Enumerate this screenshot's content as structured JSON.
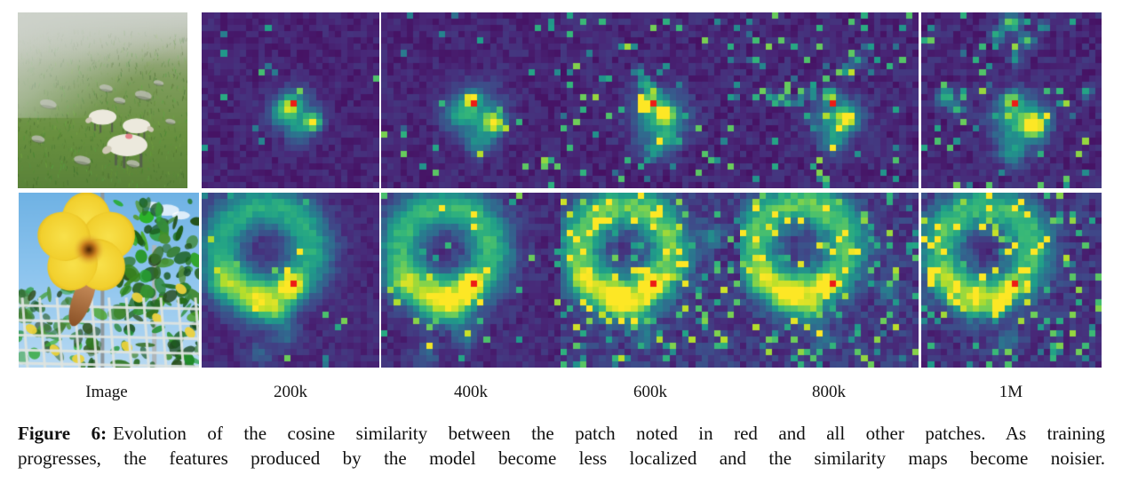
{
  "figure": {
    "column_labels": [
      "Image",
      "200k",
      "400k",
      "600k",
      "800k",
      "1M"
    ],
    "caption": {
      "tag": "Figure 6:",
      "line1": "Evolution of the cosine similarity between the patch noted in red and all other patches.  As training",
      "line2": "progresses, the features produced by the model become less localized and the similarity maps become noisier."
    }
  },
  "photos": [
    {
      "id": "sheep",
      "description": "Three white sheep grazing on a foggy green hillside"
    },
    {
      "id": "flower",
      "description": "Large yellow flower against blue sky with green foliage and a white wire fence"
    }
  ],
  "colors": {
    "red_patch": "#ed1c16",
    "background": "#ffffff",
    "viridis": [
      "#440154",
      "#482878",
      "#3e4a89",
      "#31688e",
      "#26828e",
      "#1f9e89",
      "#35b779",
      "#6ece58",
      "#b5de2b",
      "#fde725"
    ]
  },
  "grid": 28,
  "red_cell": [
    14,
    14
  ],
  "heatmaps": [
    {
      "id": "r0p0",
      "row": 0,
      "step": "200k",
      "seed": 11,
      "base": 0.1,
      "noise": 0.05,
      "speckle": 0.012,
      "blobs": [
        [
          0.52,
          0.56,
          0.085,
          0.33
        ],
        [
          0.505,
          0.525,
          0.04,
          0.5
        ],
        [
          0.63,
          0.625,
          0.033,
          0.8
        ],
        [
          0.55,
          0.68,
          0.05,
          0.25
        ],
        [
          0.445,
          0.575,
          0.05,
          0.28
        ]
      ]
    },
    {
      "id": "r0p1",
      "row": 0,
      "step": "400k",
      "seed": 22,
      "base": 0.105,
      "noise": 0.055,
      "speckle": 0.03,
      "blobs": [
        [
          0.53,
          0.57,
          0.1,
          0.4
        ],
        [
          0.505,
          0.495,
          0.028,
          0.85
        ],
        [
          0.63,
          0.63,
          0.04,
          0.8
        ],
        [
          0.55,
          0.74,
          0.055,
          0.3
        ],
        [
          0.43,
          0.58,
          0.05,
          0.3
        ]
      ]
    },
    {
      "id": "r0p2",
      "row": 0,
      "step": "600k",
      "seed": 33,
      "base": 0.11,
      "noise": 0.065,
      "speckle": 0.06,
      "blobs": [
        [
          0.55,
          0.6,
          0.1,
          0.48
        ],
        [
          0.585,
          0.575,
          0.033,
          0.8
        ],
        [
          0.5,
          0.5,
          0.04,
          0.5
        ],
        [
          0.47,
          0.4,
          0.025,
          0.55
        ],
        [
          0.435,
          0.335,
          0.02,
          0.5
        ],
        [
          0.52,
          0.44,
          0.02,
          0.5
        ],
        [
          0.52,
          0.79,
          0.04,
          0.35
        ],
        [
          0.6,
          0.72,
          0.04,
          0.3
        ]
      ]
    },
    {
      "id": "r0p3",
      "row": 0,
      "step": "800k",
      "seed": 44,
      "base": 0.11,
      "noise": 0.065,
      "speckle": 0.07,
      "blobs": [
        [
          0.55,
          0.6,
          0.09,
          0.46
        ],
        [
          0.6,
          0.605,
          0.033,
          0.85
        ],
        [
          0.5,
          0.47,
          0.024,
          0.8
        ],
        [
          0.22,
          0.49,
          0.02,
          0.8
        ],
        [
          0.28,
          0.51,
          0.018,
          0.7
        ],
        [
          0.335,
          0.5,
          0.016,
          0.6
        ],
        [
          0.16,
          0.47,
          0.016,
          0.65
        ],
        [
          0.4,
          0.46,
          0.02,
          0.55
        ],
        [
          0.6,
          0.33,
          0.025,
          0.5
        ],
        [
          0.66,
          0.27,
          0.025,
          0.5
        ],
        [
          0.72,
          0.2,
          0.02,
          0.45
        ],
        [
          0.52,
          0.74,
          0.05,
          0.3
        ]
      ]
    },
    {
      "id": "r0p4",
      "row": 0,
      "step": "1M",
      "seed": 55,
      "base": 0.11,
      "noise": 0.065,
      "speckle": 0.055,
      "blobs": [
        [
          0.55,
          0.62,
          0.105,
          0.5
        ],
        [
          0.625,
          0.64,
          0.045,
          0.8
        ],
        [
          0.5,
          0.5,
          0.035,
          0.6
        ],
        [
          0.5,
          0.06,
          0.035,
          0.7
        ],
        [
          0.42,
          0.13,
          0.025,
          0.6
        ],
        [
          0.58,
          0.16,
          0.03,
          0.6
        ],
        [
          0.52,
          0.26,
          0.025,
          0.5
        ],
        [
          0.68,
          0.08,
          0.02,
          0.55
        ],
        [
          0.14,
          0.48,
          0.035,
          0.6
        ],
        [
          0.2,
          0.55,
          0.025,
          0.5
        ],
        [
          0.5,
          0.8,
          0.05,
          0.33
        ],
        [
          0.92,
          0.45,
          0.022,
          0.5
        ]
      ]
    },
    {
      "id": "r1p0",
      "row": 1,
      "step": "200k",
      "seed": 66,
      "base": 0.12,
      "noise": 0.05,
      "speckle": 0.02,
      "ring": [
        0.36,
        0.33,
        0.25,
        0.09,
        0.5
      ],
      "blobs": [
        [
          0.5,
          0.53,
          0.042,
          0.85
        ],
        [
          0.3,
          0.62,
          0.08,
          0.38
        ],
        [
          0.42,
          0.68,
          0.06,
          0.33
        ],
        [
          0.12,
          0.52,
          0.065,
          0.3
        ],
        [
          0.48,
          0.82,
          0.05,
          0.22
        ],
        [
          0.33,
          0.92,
          0.05,
          0.18
        ]
      ]
    },
    {
      "id": "r1p1",
      "row": 1,
      "step": "400k",
      "seed": 77,
      "base": 0.12,
      "noise": 0.06,
      "speckle": 0.05,
      "ring": [
        0.36,
        0.33,
        0.25,
        0.09,
        0.55
      ],
      "blobs": [
        [
          0.5,
          0.53,
          0.042,
          0.95
        ],
        [
          0.3,
          0.62,
          0.08,
          0.4
        ],
        [
          0.42,
          0.68,
          0.06,
          0.35
        ],
        [
          0.12,
          0.52,
          0.06,
          0.3
        ],
        [
          0.48,
          0.83,
          0.05,
          0.25
        ],
        [
          0.25,
          0.93,
          0.05,
          0.2
        ]
      ]
    },
    {
      "id": "r1p2",
      "row": 1,
      "step": "600k",
      "seed": 88,
      "base": 0.17,
      "noise": 0.085,
      "speckle": 0.13,
      "ring": [
        0.36,
        0.33,
        0.25,
        0.085,
        0.6
      ],
      "blobs": [
        [
          0.5,
          0.53,
          0.04,
          0.85
        ],
        [
          0.3,
          0.62,
          0.075,
          0.4
        ],
        [
          0.42,
          0.68,
          0.055,
          0.35
        ],
        [
          0.12,
          0.52,
          0.055,
          0.3
        ],
        [
          0.85,
          0.25,
          0.04,
          0.3
        ],
        [
          0.48,
          0.84,
          0.05,
          0.22
        ]
      ]
    },
    {
      "id": "r1p3",
      "row": 1,
      "step": "800k",
      "seed": 99,
      "base": 0.165,
      "noise": 0.085,
      "speckle": 0.13,
      "ring": [
        0.34,
        0.31,
        0.25,
        0.085,
        0.58
      ],
      "blobs": [
        [
          0.48,
          0.52,
          0.035,
          0.7
        ],
        [
          0.28,
          0.6,
          0.075,
          0.42
        ],
        [
          0.4,
          0.67,
          0.055,
          0.33
        ],
        [
          0.12,
          0.5,
          0.05,
          0.3
        ],
        [
          0.82,
          0.55,
          0.04,
          0.3
        ],
        [
          0.46,
          0.84,
          0.05,
          0.2
        ]
      ]
    },
    {
      "id": "r1p4",
      "row": 1,
      "step": "1M",
      "seed": 111,
      "base": 0.15,
      "noise": 0.08,
      "speckle": 0.11,
      "ring": [
        0.36,
        0.33,
        0.25,
        0.085,
        0.55
      ],
      "blobs": [
        [
          0.5,
          0.53,
          0.03,
          0.75
        ],
        [
          0.46,
          0.6,
          0.025,
          0.8
        ],
        [
          0.43,
          0.65,
          0.022,
          0.7
        ],
        [
          0.41,
          0.7,
          0.02,
          0.6
        ],
        [
          0.3,
          0.62,
          0.07,
          0.38
        ],
        [
          0.12,
          0.52,
          0.05,
          0.28
        ],
        [
          0.48,
          0.85,
          0.05,
          0.22
        ]
      ]
    }
  ]
}
